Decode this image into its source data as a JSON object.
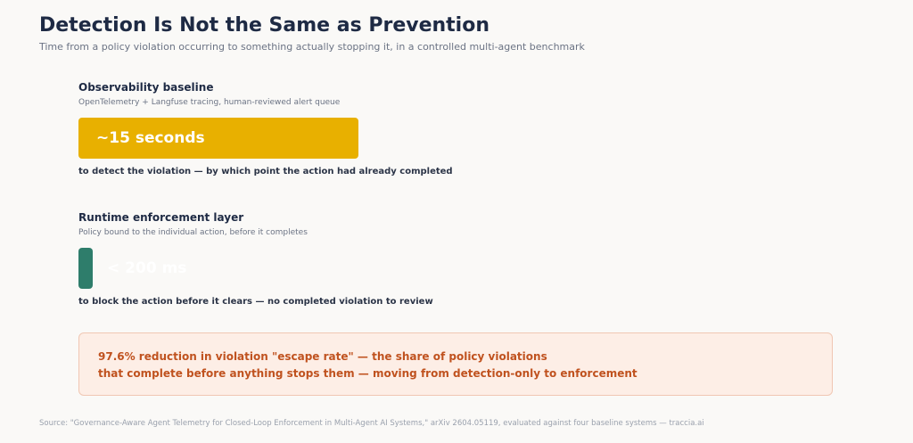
{
  "title": "Detection Is Not the Same as Prevention",
  "subtitle": "Time from a policy violation occurring to something actually stopping it, in a controlled multi-agent benchmark",
  "colors": {
    "baseline": "#e8b000",
    "enforcement": "#2e7d6b",
    "callout_text": "#c0521f"
  },
  "chart_data": {
    "type": "bar",
    "orientation": "horizontal",
    "unit": "seconds",
    "series": [
      {
        "name": "Observability baseline",
        "description": "OpenTelemetry + Langfuse tracing, human-reviewed alert queue",
        "value": 15,
        "value_label": "~15 seconds",
        "caption": "to detect the violation — by which point the action had already completed"
      },
      {
        "name": "Runtime enforcement layer",
        "description": "Policy bound to the individual action, before it completes",
        "value": 0.2,
        "value_label": "< 200 ms",
        "caption": "to block the action before it clears — no completed violation to review"
      }
    ]
  },
  "callout": {
    "line1": "97.6% reduction in violation \"escape rate\" — the share of policy violations",
    "line2": "that complete before anything stops them — moving from detection-only to enforcement"
  },
  "source": "Source: \"Governance-Aware Agent Telemetry for Closed-Loop Enforcement in Multi-Agent AI Systems,\" arXiv 2604.05119, evaluated against four baseline systems — traccia.ai"
}
